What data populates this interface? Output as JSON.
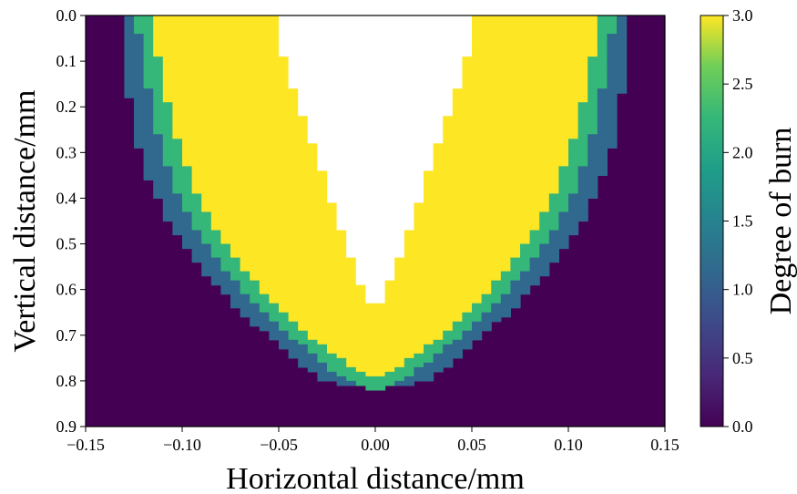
{
  "chart_data": {
    "type": "heatmap",
    "title": "",
    "xlabel": "Horizontal distance/mm",
    "ylabel": "Vertical distance/mm",
    "xlim": [
      -0.15,
      0.15
    ],
    "ylim": [
      0.9,
      0.0
    ],
    "x_ticks": [
      "−0.15",
      "−0.10",
      "−0.05",
      "0.00",
      "0.05",
      "0.10",
      "0.15"
    ],
    "y_ticks": [
      "0.0",
      "0.1",
      "0.2",
      "0.3",
      "0.4",
      "0.5",
      "0.6",
      "0.7",
      "0.8",
      "0.9"
    ],
    "colorbar": {
      "label": "Degree of burn",
      "range": [
        0.0,
        3.0
      ],
      "ticks": [
        "0.0",
        "0.5",
        "1.0",
        "1.5",
        "2.0",
        "2.5",
        "3.0"
      ],
      "colormap": "viridis"
    },
    "levels": [
      {
        "value": 0,
        "color": "#440154"
      },
      {
        "value": 1,
        "color": "#31688e"
      },
      {
        "value": 2,
        "color": "#35b779"
      },
      {
        "value": 3,
        "color": "#fde725"
      },
      {
        "value": "removed",
        "color": "#ffffff"
      }
    ],
    "profiles": {
      "description_depth": [
        0.0,
        0.05,
        0.1,
        0.15,
        0.2,
        0.25,
        0.3,
        0.35,
        0.4,
        0.45,
        0.5,
        0.55,
        0.6,
        0.65,
        0.7,
        0.75,
        0.8,
        0.82
      ],
      "outer_half_width_level1": [
        0.132,
        0.13,
        0.129,
        0.128,
        0.127,
        0.125,
        0.122,
        0.118,
        0.113,
        0.107,
        0.1,
        0.091,
        0.081,
        0.069,
        0.056,
        0.042,
        0.027,
        0.0
      ],
      "half_width_level2": [
        0.124,
        0.122,
        0.12,
        0.118,
        0.116,
        0.113,
        0.11,
        0.106,
        0.101,
        0.095,
        0.088,
        0.079,
        0.069,
        0.057,
        0.044,
        0.03,
        0.015,
        0.0
      ],
      "half_width_level3": [
        0.116,
        0.114,
        0.112,
        0.11,
        0.107,
        0.104,
        0.1,
        0.096,
        0.091,
        0.085,
        0.078,
        0.069,
        0.059,
        0.047,
        0.034,
        0.019,
        0.0,
        0.0
      ],
      "cavity_half_width": [
        0.052,
        0.05,
        0.047,
        0.043,
        0.039,
        0.035,
        0.031,
        0.027,
        0.023,
        0.019,
        0.015,
        0.011,
        0.006,
        0.0,
        0.0,
        0.0,
        0.0,
        0.0
      ]
    }
  }
}
